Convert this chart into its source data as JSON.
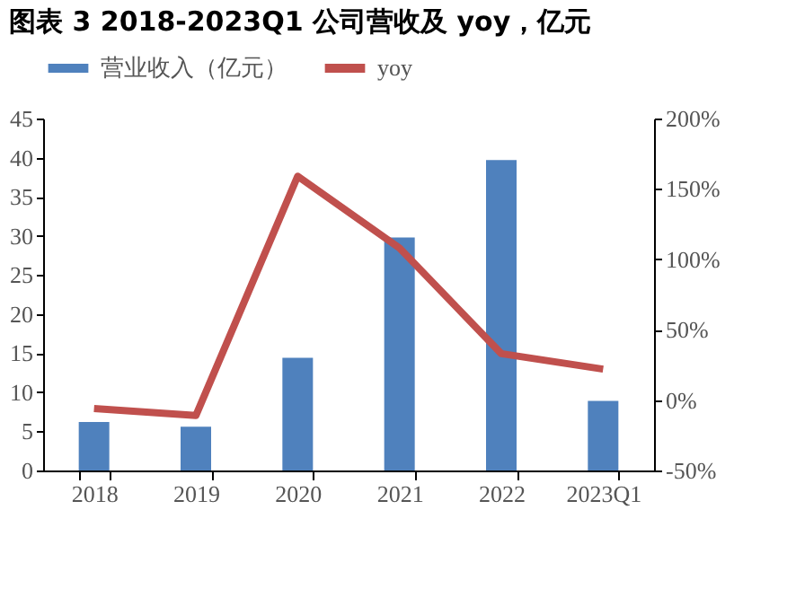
{
  "chart_data": {
    "type": "bar",
    "title": "图表 3 2018-2023Q1 公司营收及 yoy，亿元",
    "categories": [
      "2018",
      "2019",
      "2020",
      "2021",
      "2022",
      "2023Q1"
    ],
    "series": [
      {
        "name": "营业收入（亿元）",
        "color": "#4f81bd",
        "values": [
          6.2,
          5.6,
          14.4,
          29.8,
          39.7,
          8.9
        ]
      },
      {
        "name": "yoy",
        "type": "line",
        "axis": "y2",
        "color": "#c0504d",
        "values": [
          -6,
          -11,
          159,
          108,
          33,
          22
        ]
      }
    ],
    "ylim": [
      0,
      45
    ],
    "yticks": [
      0,
      5,
      10,
      15,
      20,
      25,
      30,
      35,
      40,
      45
    ],
    "y2lim": [
      -50,
      200
    ],
    "y2ticks": [
      {
        "value": -50,
        "label": "-50%"
      },
      {
        "value": 0,
        "label": "0%"
      },
      {
        "value": 50,
        "label": "50%"
      },
      {
        "value": 100,
        "label": "100%"
      },
      {
        "value": 150,
        "label": "150%"
      },
      {
        "value": 200,
        "label": "200%"
      }
    ],
    "legend": "top",
    "grid": false,
    "marker": "none",
    "line_style": "solid"
  }
}
